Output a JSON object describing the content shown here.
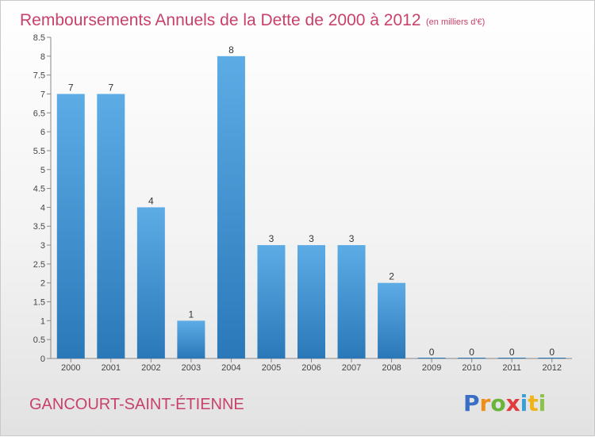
{
  "title": "Remboursements Annuels de la Dette de 2000 à 2012",
  "subtitle": "(en milliers d'€)",
  "place_name": "GANCOURT-SAINT-ÉTIENNE",
  "logo": {
    "letters": [
      "P",
      "r",
      "o",
      "x",
      "i",
      "t",
      "i"
    ],
    "colors": [
      "#3a6fc4",
      "#f08c1a",
      "#6bb43a",
      "#e23b3b",
      "#3a9fd8",
      "#f0b41a",
      "#8bc34a"
    ]
  },
  "colors": {
    "bar_top": "#5dace6",
    "bar_bottom": "#2a78b8",
    "text_accent": "#c8416a"
  },
  "chart_data": {
    "type": "bar",
    "categories": [
      "2000",
      "2001",
      "2002",
      "2003",
      "2004",
      "2005",
      "2006",
      "2007",
      "2008",
      "2009",
      "2010",
      "2011",
      "2012"
    ],
    "values": [
      7,
      7,
      4,
      1,
      8,
      3,
      3,
      3,
      2,
      0,
      0,
      0,
      0
    ],
    "data_labels": [
      "7",
      "7",
      "4",
      "1",
      "8",
      "3",
      "3",
      "3",
      "2",
      "0",
      "0",
      "0",
      "0"
    ],
    "y_ticks": [
      "0",
      "0.5",
      "1",
      "1.5",
      "2",
      "2.5",
      "3",
      "3.5",
      "4",
      "4.5",
      "5",
      "5.5",
      "6",
      "6.5",
      "7",
      "7.5",
      "8",
      "8.5"
    ],
    "ylim": [
      0,
      8.5
    ],
    "grid": false,
    "legend": "none"
  }
}
